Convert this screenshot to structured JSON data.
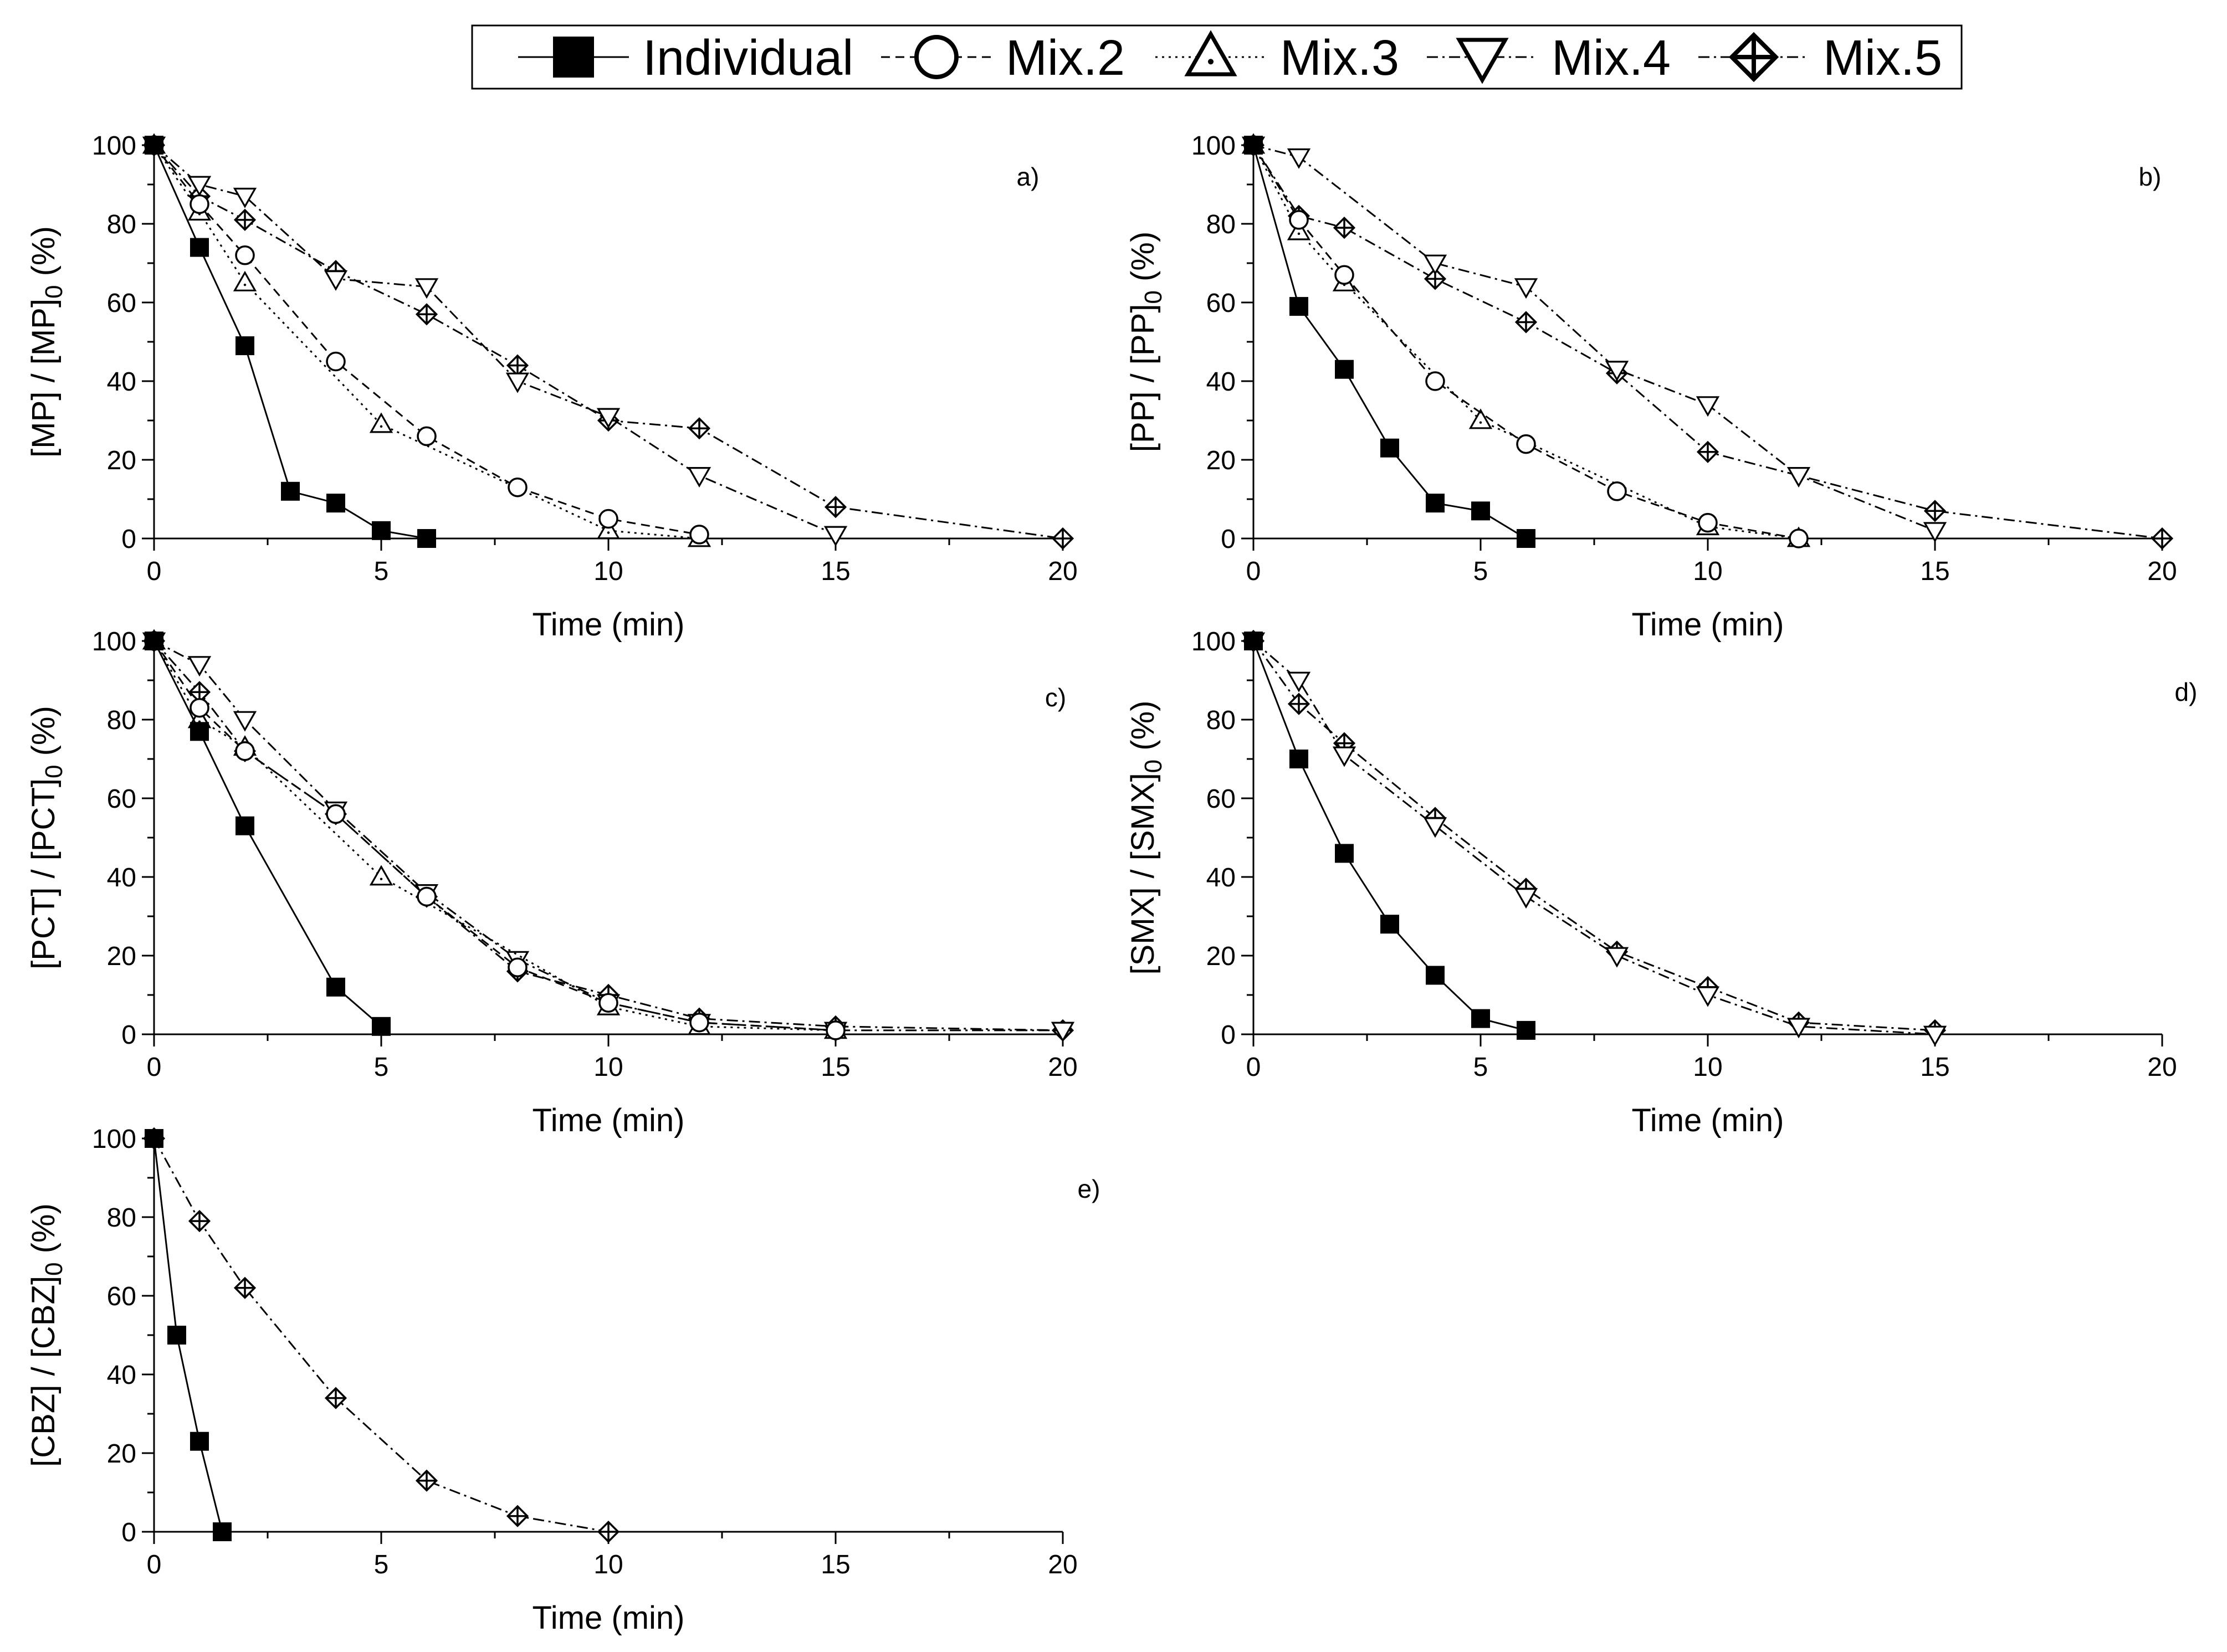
{
  "legend": [
    {
      "key": "individual",
      "label": "Individual",
      "marker": "square-filled",
      "dash": "solid"
    },
    {
      "key": "mix2",
      "label": "Mix.2",
      "marker": "circle-open",
      "dash": "dash"
    },
    {
      "key": "mix3",
      "label": "Mix.3",
      "marker": "triangle-up-dot",
      "dash": "dot"
    },
    {
      "key": "mix4",
      "label": "Mix.4",
      "marker": "triangle-down-open",
      "dash": "dashdot"
    },
    {
      "key": "mix5",
      "label": "Mix.5",
      "marker": "diamond-cross",
      "dash": "dashdot"
    }
  ],
  "colors": {
    "line": "#000000",
    "filled_marker": "#000000",
    "open_marker_fill": "#ffffff"
  },
  "chart_data": [
    {
      "type": "line",
      "panel": "a)",
      "xlabel": "Time (min)",
      "ylabel_main": "[MP] / [MP]",
      "ylabel_sub": "0",
      "ylabel_unit": " (%)",
      "xlim": [
        0,
        20
      ],
      "ylim": [
        0,
        100
      ],
      "xticks": [
        0,
        5,
        10,
        15,
        20
      ],
      "yticks": [
        0,
        20,
        40,
        60,
        80,
        100
      ],
      "series": [
        {
          "key": "individual",
          "name": "Individual",
          "x": [
            0,
            1,
            2,
            3,
            4,
            5,
            6
          ],
          "y": [
            100,
            74,
            49,
            12,
            9,
            2,
            0
          ]
        },
        {
          "key": "mix2",
          "name": "Mix.2",
          "x": [
            0,
            1,
            2,
            4,
            6,
            8,
            10,
            12
          ],
          "y": [
            100,
            85,
            72,
            45,
            26,
            13,
            5,
            1
          ]
        },
        {
          "key": "mix3",
          "name": "Mix.3",
          "x": [
            0,
            1,
            2,
            5,
            10,
            12
          ],
          "y": [
            100,
            83,
            65,
            29,
            2,
            0
          ]
        },
        {
          "key": "mix4",
          "name": "Mix.4",
          "x": [
            0,
            1,
            2,
            4,
            6,
            8,
            10,
            12,
            15
          ],
          "y": [
            100,
            90,
            87,
            66,
            64,
            40,
            31,
            16,
            1
          ]
        },
        {
          "key": "mix5",
          "name": "Mix.5",
          "x": [
            0,
            1,
            2,
            4,
            6,
            8,
            10,
            12,
            15,
            20
          ],
          "y": [
            100,
            87,
            81,
            68,
            57,
            44,
            30,
            28,
            8,
            0
          ]
        }
      ]
    },
    {
      "type": "line",
      "panel": "b)",
      "xlabel": "Time (min)",
      "ylabel_main": "[PP] / [PP]",
      "ylabel_sub": "0",
      "ylabel_unit": " (%)",
      "xlim": [
        0,
        20
      ],
      "ylim": [
        0,
        100
      ],
      "xticks": [
        0,
        5,
        10,
        15,
        20
      ],
      "yticks": [
        0,
        20,
        40,
        60,
        80,
        100
      ],
      "series": [
        {
          "key": "individual",
          "name": "Individual",
          "x": [
            0,
            1,
            2,
            3,
            4,
            5,
            6
          ],
          "y": [
            100,
            59,
            43,
            23,
            9,
            7,
            0
          ]
        },
        {
          "key": "mix2",
          "name": "Mix.2",
          "x": [
            0,
            1,
            2,
            4,
            6,
            8,
            10,
            12
          ],
          "y": [
            100,
            81,
            67,
            40,
            24,
            12,
            4,
            0
          ]
        },
        {
          "key": "mix3",
          "name": "Mix.3",
          "x": [
            0,
            1,
            2,
            5,
            10,
            12
          ],
          "y": [
            100,
            78,
            65,
            30,
            3,
            0
          ]
        },
        {
          "key": "mix4",
          "name": "Mix.4",
          "x": [
            0,
            1,
            4,
            6,
            8,
            10,
            12,
            15
          ],
          "y": [
            100,
            97,
            70,
            64,
            43,
            34,
            16,
            2
          ]
        },
        {
          "key": "mix5",
          "name": "Mix.5",
          "x": [
            0,
            1,
            2,
            4,
            6,
            8,
            10,
            15,
            20
          ],
          "y": [
            100,
            82,
            79,
            66,
            55,
            42,
            22,
            7,
            0
          ]
        }
      ]
    },
    {
      "type": "line",
      "panel": "c)",
      "xlabel": "Time (min)",
      "ylabel_main": "[PCT] / [PCT]",
      "ylabel_sub": "0",
      "ylabel_unit": " (%)",
      "xlim": [
        0,
        20
      ],
      "ylim": [
        0,
        100
      ],
      "xticks": [
        0,
        5,
        10,
        15,
        20
      ],
      "yticks": [
        0,
        20,
        40,
        60,
        80,
        100
      ],
      "series": [
        {
          "key": "individual",
          "name": "Individual",
          "x": [
            0,
            1,
            2,
            4,
            5
          ],
          "y": [
            100,
            77,
            53,
            12,
            2
          ]
        },
        {
          "key": "mix2",
          "name": "Mix.2",
          "x": [
            0,
            1,
            2,
            4,
            6,
            8,
            10,
            12,
            15
          ],
          "y": [
            100,
            83,
            72,
            56,
            35,
            17,
            8,
            3,
            1
          ]
        },
        {
          "key": "mix3",
          "name": "Mix.3",
          "x": [
            0,
            1,
            2,
            5,
            10,
            12,
            15
          ],
          "y": [
            100,
            80,
            73,
            40,
            7,
            2,
            1
          ]
        },
        {
          "key": "mix4",
          "name": "Mix.4",
          "x": [
            0,
            1,
            2,
            4,
            6,
            8,
            10,
            12,
            15,
            20
          ],
          "y": [
            100,
            94,
            80,
            57,
            36,
            19,
            8,
            3,
            1,
            1
          ]
        },
        {
          "key": "mix5",
          "name": "Mix.5",
          "x": [
            0,
            1,
            2,
            4,
            6,
            8,
            10,
            12,
            15,
            20
          ],
          "y": [
            100,
            87,
            72,
            56,
            35,
            16,
            10,
            4,
            2,
            1
          ]
        }
      ]
    },
    {
      "type": "line",
      "panel": "d)",
      "xlabel": "Time (min)",
      "ylabel_main": "[SMX] / [SMX]",
      "ylabel_sub": "0",
      "ylabel_unit": " (%)",
      "xlim": [
        0,
        20
      ],
      "ylim": [
        0,
        100
      ],
      "xticks": [
        0,
        5,
        10,
        15,
        20
      ],
      "yticks": [
        0,
        20,
        40,
        60,
        80,
        100
      ],
      "series": [
        {
          "key": "individual",
          "name": "Individual",
          "x": [
            0,
            1,
            2,
            3,
            4,
            5,
            6
          ],
          "y": [
            100,
            70,
            46,
            28,
            15,
            4,
            1
          ]
        },
        {
          "key": "mix4",
          "name": "Mix.4",
          "x": [
            0,
            1,
            2,
            4,
            6,
            8,
            10,
            12,
            15
          ],
          "y": [
            100,
            90,
            71,
            53,
            35,
            20,
            10,
            2,
            0
          ]
        },
        {
          "key": "mix5",
          "name": "Mix.5",
          "x": [
            0,
            1,
            2,
            4,
            6,
            8,
            10,
            12,
            15
          ],
          "y": [
            100,
            84,
            74,
            55,
            37,
            21,
            12,
            3,
            1
          ]
        }
      ]
    },
    {
      "type": "line",
      "panel": "e)",
      "xlabel": "Time (min)",
      "ylabel_main": "[CBZ] / [CBZ]",
      "ylabel_sub": "0",
      "ylabel_unit": " (%)",
      "xlim": [
        0,
        20
      ],
      "ylim": [
        0,
        100
      ],
      "xticks": [
        0,
        5,
        10,
        15,
        20
      ],
      "yticks": [
        0,
        20,
        40,
        60,
        80,
        100
      ],
      "series": [
        {
          "key": "individual",
          "name": "Individual",
          "x": [
            0,
            0.5,
            1,
            1.5
          ],
          "y": [
            100,
            50,
            23,
            0
          ]
        },
        {
          "key": "mix5",
          "name": "Mix.5",
          "x": [
            0,
            1,
            2,
            4,
            6,
            8,
            10
          ],
          "y": [
            100,
            79,
            62,
            34,
            13,
            4,
            0
          ]
        }
      ]
    }
  ]
}
